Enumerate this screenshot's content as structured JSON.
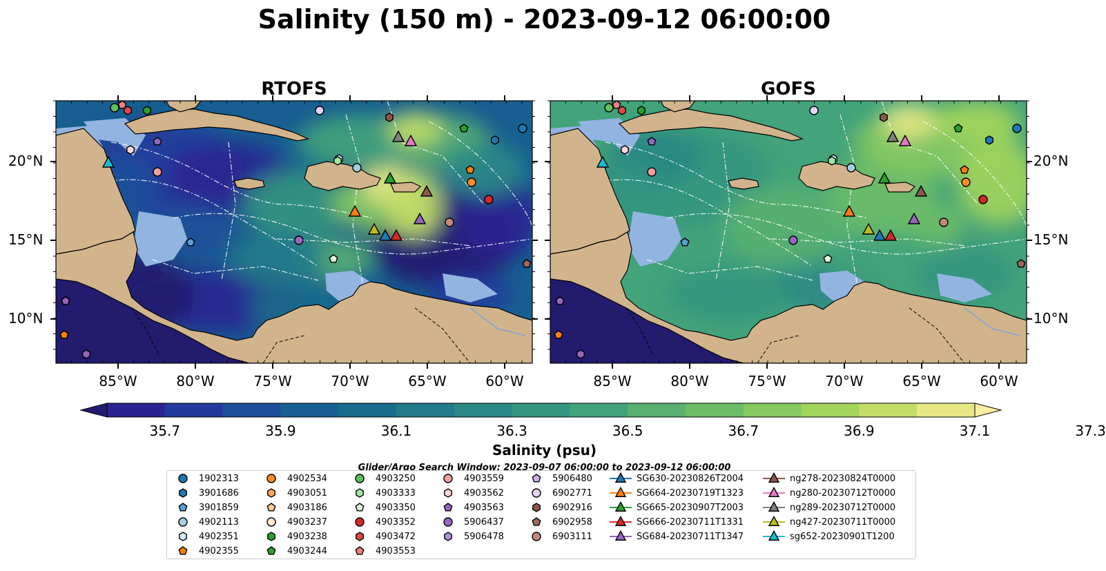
{
  "title": "Salinity (150 m) - 2023-09-12 06:00:00",
  "panels": [
    {
      "title": "RTOFS",
      "palette": "rtofs"
    },
    {
      "title": "GOFS",
      "palette": "gofs"
    }
  ],
  "axes": {
    "x_ticks": [
      "85°W",
      "80°W",
      "75°W",
      "70°W",
      "65°W",
      "60°W"
    ],
    "y_ticks": [
      "20°N",
      "15°N",
      "10°N"
    ]
  },
  "colorbar": {
    "label": "Salinity (psu)",
    "ticks": [
      "35.7",
      "35.9",
      "36.1",
      "36.3",
      "36.5",
      "36.7",
      "36.9",
      "37.1",
      "37.3"
    ],
    "colors": [
      "#231b6e",
      "#2a2391",
      "#233a9c",
      "#1d4f98",
      "#175f91",
      "#1b6c8c",
      "#237a89",
      "#2b8886",
      "#34957f",
      "#43a37a",
      "#58b071",
      "#6dbd68",
      "#86c95f",
      "#a3d45c",
      "#c3de67",
      "#e5e885",
      "#f8f0a0"
    ]
  },
  "search_window": "Glider/Argo Search Window: 2023-09-07 06:00:00 to 2023-09-12 06:00:00",
  "legend": {
    "columns": [
      [
        {
          "label": "1902313",
          "shape": "circle",
          "color": "#1f77b4"
        },
        {
          "label": "3901686",
          "shape": "hexagon",
          "color": "#1f77b4"
        },
        {
          "label": "3901859",
          "shape": "pentagon",
          "color": "#5a9fd4"
        },
        {
          "label": "4902113",
          "shape": "circle",
          "color": "#a6cee3"
        },
        {
          "label": "4902351",
          "shape": "hexagon",
          "color": "#dceefa"
        },
        {
          "label": "4902355",
          "shape": "pentagon",
          "color": "#ff7f0e"
        }
      ],
      [
        {
          "label": "4902534",
          "shape": "circle",
          "color": "#ff8c29"
        },
        {
          "label": "4903051",
          "shape": "hexagon",
          "color": "#ffa75a"
        },
        {
          "label": "4903186",
          "shape": "pentagon",
          "color": "#ffc999"
        },
        {
          "label": "4903237",
          "shape": "circle",
          "color": "#ffe9d0"
        },
        {
          "label": "4903238",
          "shape": "hexagon",
          "color": "#2ca02c"
        },
        {
          "label": "4903244",
          "shape": "pentagon",
          "color": "#2ca02c"
        }
      ],
      [
        {
          "label": "4903250",
          "shape": "circle",
          "color": "#5cc15c"
        },
        {
          "label": "4903333",
          "shape": "hexagon",
          "color": "#a4e6a0"
        },
        {
          "label": "4903350",
          "shape": "pentagon",
          "color": "#dff8da"
        },
        {
          "label": "4903352",
          "shape": "circle",
          "color": "#d62728"
        },
        {
          "label": "4903472",
          "shape": "hexagon",
          "color": "#e04848"
        },
        {
          "label": "4903553",
          "shape": "pentagon",
          "color": "#f28080"
        }
      ],
      [
        {
          "label": "4903559",
          "shape": "circle",
          "color": "#f4a0a0"
        },
        {
          "label": "4903562",
          "shape": "hexagon",
          "color": "#fcd8d6"
        },
        {
          "label": "4903563",
          "shape": "pentagon",
          "color": "#9467bd"
        },
        {
          "label": "5906437",
          "shape": "circle",
          "color": "#9467bd"
        },
        {
          "label": "5906478",
          "shape": "hexagon",
          "color": "#b190d6"
        }
      ],
      [
        {
          "label": "5906480",
          "shape": "pentagon",
          "color": "#cdb2ea"
        },
        {
          "label": "6902771",
          "shape": "circle",
          "color": "#e6d3f5"
        },
        {
          "label": "6902916",
          "shape": "hexagon",
          "color": "#8c564b"
        },
        {
          "label": "6902958",
          "shape": "pentagon",
          "color": "#a0685c"
        },
        {
          "label": "6903111",
          "shape": "circle",
          "color": "#c48a7c"
        }
      ],
      [
        {
          "label": "SG630-20230826T2004",
          "shape": "triangle",
          "color": "#1f77b4"
        },
        {
          "label": "SG664-20230719T1323",
          "shape": "triangle",
          "color": "#ff7f0e"
        },
        {
          "label": "SG665-20230907T2003",
          "shape": "triangle",
          "color": "#2ca02c"
        },
        {
          "label": "SG666-20230711T1331",
          "shape": "triangle",
          "color": "#d62728"
        },
        {
          "label": "SG684-20230711T1347",
          "shape": "triangle",
          "color": "#9467bd"
        }
      ],
      [
        {
          "label": "ng278-20230824T0000",
          "shape": "triangle",
          "color": "#8c564b"
        },
        {
          "label": "ng280-20230712T0000",
          "shape": "triangle",
          "color": "#e377c2"
        },
        {
          "label": "ng289-20230712T0000",
          "shape": "triangle",
          "color": "#7f7f7f"
        },
        {
          "label": "ng427-20230711T0000",
          "shape": "triangle",
          "color": "#bcbd22"
        },
        {
          "label": "sg652-20230901T1200",
          "shape": "triangle",
          "color": "#17becf"
        }
      ]
    ]
  },
  "colors": {
    "land": "#d2b48c",
    "shelf": "#92b4e0",
    "marker_edge": "#000000",
    "track": "#ffffff"
  }
}
